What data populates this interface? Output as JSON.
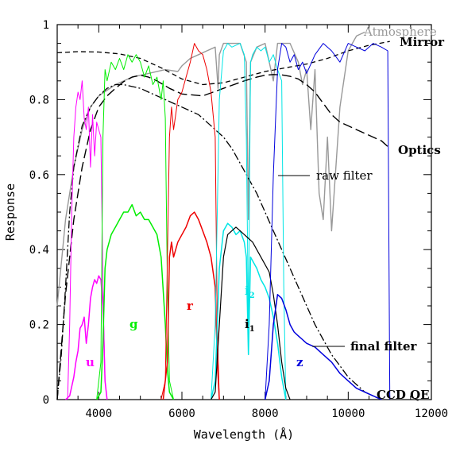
{
  "chart_data": {
    "type": "line",
    "xlabel": "Wavelength (Å)",
    "ylabel": "Response",
    "xlim": [
      3000,
      12000
    ],
    "ylim": [
      0,
      1
    ],
    "x_ticks": [
      4000,
      6000,
      8000,
      10000,
      12000
    ],
    "y_ticks": [
      0,
      0.2,
      0.4,
      0.6,
      0.8,
      1
    ],
    "x_tick_labels": [
      "4000",
      "6000",
      "8000",
      "10000",
      "12000"
    ],
    "y_tick_labels": [
      "0",
      "0.2",
      "0.4",
      "0.6",
      "0.8",
      "1"
    ],
    "colors": {
      "u": "#ff00ff",
      "g": "#00ee00",
      "r": "#ee0000",
      "i": "#00e5e5",
      "z": "#0000dd",
      "atmosphere": "#999999",
      "black": "#000000"
    },
    "annotations": {
      "atmosphere": "Atmosphere",
      "mirror": "Mirror",
      "optics": "Optics",
      "raw_filter": "raw filter",
      "final_filter": "final filter",
      "ccd_qe": "CCD QE",
      "u": "u",
      "g": "g",
      "r": "r",
      "i2": "i",
      "i2_sub": "2",
      "i1": "i",
      "i1_sub": "1",
      "z": "z"
    },
    "series": [
      {
        "key": "atmosphere",
        "x": [
          3000,
          3200,
          3400,
          3600,
          3800,
          4000,
          4400,
          4800,
          5200,
          5600,
          5900,
          6000,
          6200,
          6400,
          6600,
          6800,
          6870,
          6900,
          7000,
          7200,
          7400,
          7550,
          7600,
          7650,
          7800,
          8000,
          8100,
          8200,
          8300,
          8600,
          8800,
          8900,
          9000,
          9100,
          9200,
          9300,
          9400,
          9500,
          9600,
          9800,
          10000,
          10200,
          10400
        ],
        "y": [
          0.25,
          0.48,
          0.62,
          0.72,
          0.78,
          0.81,
          0.84,
          0.86,
          0.87,
          0.88,
          0.875,
          0.89,
          0.91,
          0.92,
          0.93,
          0.94,
          0.83,
          0.92,
          0.95,
          0.95,
          0.95,
          0.9,
          0.48,
          0.9,
          0.94,
          0.95,
          0.9,
          0.85,
          0.95,
          0.95,
          0.9,
          0.84,
          0.88,
          0.72,
          0.88,
          0.55,
          0.48,
          0.7,
          0.45,
          0.78,
          0.93,
          0.97,
          0.98
        ]
      },
      {
        "key": "mirror",
        "x": [
          3000,
          3500,
          4000,
          4500,
          5000,
          5500,
          6000,
          6500,
          7000,
          7500,
          8000,
          8500,
          9000,
          9500,
          10000,
          10500,
          11000
        ],
        "y": [
          0.925,
          0.928,
          0.927,
          0.922,
          0.91,
          0.885,
          0.855,
          0.84,
          0.845,
          0.86,
          0.875,
          0.885,
          0.895,
          0.91,
          0.93,
          0.945,
          0.955
        ]
      },
      {
        "key": "optics",
        "x": [
          3000,
          3200,
          3400,
          3600,
          3800,
          4000,
          4200,
          4400,
          4600,
          4800,
          5000,
          5200,
          5400,
          5700,
          6000,
          6500,
          7000,
          7500,
          7800,
          8000,
          8200,
          8400,
          8600,
          8800,
          9000,
          9200,
          9400,
          9600,
          9800,
          10000,
          10200,
          10400,
          10600,
          10800,
          11000
        ],
        "y": [
          0.0,
          0.28,
          0.48,
          0.62,
          0.72,
          0.78,
          0.81,
          0.83,
          0.848,
          0.86,
          0.865,
          0.86,
          0.85,
          0.83,
          0.815,
          0.81,
          0.83,
          0.85,
          0.86,
          0.865,
          0.867,
          0.866,
          0.862,
          0.855,
          0.84,
          0.82,
          0.79,
          0.76,
          0.74,
          0.73,
          0.72,
          0.71,
          0.7,
          0.69,
          0.67
        ]
      },
      {
        "key": "ccd",
        "x": [
          3000,
          3100,
          3200,
          3300,
          3400,
          3600,
          3800,
          4000,
          4200,
          4400,
          4600,
          4800,
          5000,
          5200,
          5400,
          5600,
          5800,
          6000,
          6200,
          6400,
          6600,
          6800,
          7000,
          7200,
          7400,
          7600,
          7800,
          8000,
          8200,
          8400,
          8600,
          8800,
          9000,
          9200,
          9400,
          9600,
          9800,
          10000,
          10200,
          10400,
          10600,
          10800
        ],
        "y": [
          0.0,
          0.12,
          0.3,
          0.5,
          0.62,
          0.73,
          0.78,
          0.81,
          0.83,
          0.84,
          0.84,
          0.835,
          0.83,
          0.82,
          0.81,
          0.8,
          0.79,
          0.78,
          0.77,
          0.76,
          0.74,
          0.72,
          0.7,
          0.67,
          0.63,
          0.59,
          0.55,
          0.5,
          0.45,
          0.4,
          0.35,
          0.3,
          0.25,
          0.2,
          0.16,
          0.12,
          0.09,
          0.06,
          0.04,
          0.02,
          0.01,
          0.0
        ]
      },
      {
        "key": "u_raw",
        "x": [
          3250,
          3300,
          3350,
          3400,
          3450,
          3500,
          3550,
          3600,
          3650,
          3700,
          3750,
          3800,
          3850,
          3900,
          3950,
          4000,
          4050,
          4100,
          4150,
          4200
        ],
        "y": [
          0.0,
          0.2,
          0.5,
          0.7,
          0.78,
          0.82,
          0.8,
          0.85,
          0.75,
          0.72,
          0.78,
          0.62,
          0.76,
          0.65,
          0.74,
          0.72,
          0.7,
          0.3,
          0.05,
          0.0
        ]
      },
      {
        "key": "u_final",
        "x": [
          3200,
          3300,
          3400,
          3450,
          3500,
          3550,
          3600,
          3650,
          3700,
          3750,
          3800,
          3850,
          3900,
          3950,
          4000,
          4050,
          4100,
          4150,
          4200
        ],
        "y": [
          0.0,
          0.01,
          0.06,
          0.1,
          0.13,
          0.19,
          0.2,
          0.22,
          0.15,
          0.2,
          0.27,
          0.3,
          0.32,
          0.31,
          0.33,
          0.32,
          0.25,
          0.05,
          0.0
        ]
      },
      {
        "key": "g_raw",
        "x": [
          3950,
          4050,
          4100,
          4150,
          4200,
          4300,
          4400,
          4500,
          4600,
          4700,
          4800,
          4900,
          5000,
          5100,
          5200,
          5300,
          5400,
          5500,
          5550,
          5600,
          5650,
          5700,
          5800
        ],
        "y": [
          0.0,
          0.1,
          0.7,
          0.88,
          0.85,
          0.9,
          0.88,
          0.91,
          0.88,
          0.92,
          0.9,
          0.92,
          0.9,
          0.86,
          0.89,
          0.84,
          0.86,
          0.8,
          0.85,
          0.75,
          0.3,
          0.05,
          0.0
        ]
      },
      {
        "key": "g_final",
        "x": [
          3950,
          4050,
          4100,
          4150,
          4200,
          4300,
          4400,
          4500,
          4600,
          4700,
          4800,
          4900,
          5000,
          5100,
          5200,
          5300,
          5400,
          5500,
          5600,
          5650,
          5700,
          5800
        ],
        "y": [
          0.0,
          0.02,
          0.15,
          0.35,
          0.4,
          0.44,
          0.46,
          0.48,
          0.5,
          0.5,
          0.52,
          0.49,
          0.5,
          0.48,
          0.48,
          0.46,
          0.44,
          0.38,
          0.2,
          0.08,
          0.02,
          0.0
        ]
      },
      {
        "key": "r_raw",
        "x": [
          5500,
          5600,
          5700,
          5750,
          5800,
          5900,
          6000,
          6100,
          6200,
          6300,
          6400,
          6500,
          6600,
          6700,
          6800,
          6850,
          6900
        ],
        "y": [
          0.0,
          0.05,
          0.7,
          0.78,
          0.72,
          0.8,
          0.82,
          0.86,
          0.9,
          0.95,
          0.93,
          0.92,
          0.88,
          0.82,
          0.7,
          0.2,
          0.0
        ]
      },
      {
        "key": "r_final",
        "x": [
          5550,
          5650,
          5700,
          5750,
          5800,
          5900,
          6000,
          6100,
          6200,
          6300,
          6400,
          6500,
          6600,
          6700,
          6800,
          6850,
          6900
        ],
        "y": [
          0.0,
          0.1,
          0.38,
          0.42,
          0.38,
          0.42,
          0.44,
          0.46,
          0.49,
          0.5,
          0.48,
          0.45,
          0.42,
          0.38,
          0.3,
          0.1,
          0.0
        ]
      },
      {
        "key": "i_raw",
        "x": [
          6700,
          6800,
          6900,
          7000,
          7100,
          7200,
          7400,
          7500,
          7550,
          7600,
          7650,
          7700,
          7800,
          7900,
          8000,
          8100,
          8200,
          8300,
          8400,
          8450,
          8500
        ],
        "y": [
          0.0,
          0.2,
          0.8,
          0.93,
          0.95,
          0.94,
          0.95,
          0.92,
          0.7,
          0.2,
          0.9,
          0.92,
          0.94,
          0.93,
          0.94,
          0.9,
          0.92,
          0.88,
          0.85,
          0.3,
          0.0
        ]
      },
      {
        "key": "i_final",
        "x": [
          6700,
          6800,
          6900,
          7000,
          7100,
          7200,
          7300,
          7400,
          7500,
          7550,
          7600,
          7650,
          7700,
          7800,
          7900,
          8000,
          8100,
          8200,
          8300,
          8400,
          8500
        ],
        "y": [
          0.0,
          0.05,
          0.35,
          0.45,
          0.47,
          0.46,
          0.44,
          0.45,
          0.42,
          0.38,
          0.12,
          0.38,
          0.37,
          0.35,
          0.32,
          0.3,
          0.27,
          0.22,
          0.15,
          0.06,
          0.0
        ]
      },
      {
        "key": "i1_final",
        "x": [
          6700,
          6800,
          6900,
          7000,
          7100,
          7200,
          7300,
          7400,
          7500,
          7600,
          7700,
          7800,
          7900,
          8000,
          8100,
          8200,
          8300,
          8400,
          8500,
          8600
        ],
        "y": [
          0.0,
          0.02,
          0.2,
          0.38,
          0.44,
          0.45,
          0.46,
          0.45,
          0.44,
          0.43,
          0.42,
          0.4,
          0.38,
          0.36,
          0.34,
          0.28,
          0.2,
          0.1,
          0.03,
          0.0
        ]
      },
      {
        "key": "z_raw",
        "x": [
          8000,
          8100,
          8200,
          8300,
          8400,
          8500,
          8600,
          8700,
          8800,
          8900,
          9000,
          9200,
          9400,
          9600,
          9800,
          10000,
          10200,
          10400,
          10600,
          10800,
          10950,
          11000
        ],
        "y": [
          0.0,
          0.2,
          0.6,
          0.88,
          0.95,
          0.94,
          0.9,
          0.92,
          0.88,
          0.9,
          0.87,
          0.92,
          0.95,
          0.93,
          0.9,
          0.95,
          0.94,
          0.93,
          0.95,
          0.94,
          0.93,
          0.0
        ]
      },
      {
        "key": "z_final",
        "x": [
          8000,
          8100,
          8200,
          8300,
          8400,
          8500,
          8600,
          8700,
          8800,
          8900,
          9000,
          9200,
          9400,
          9600,
          9800,
          10000,
          10200,
          10400,
          10600,
          10800
        ],
        "y": [
          0.0,
          0.05,
          0.2,
          0.28,
          0.27,
          0.24,
          0.2,
          0.18,
          0.17,
          0.16,
          0.15,
          0.14,
          0.12,
          0.1,
          0.07,
          0.05,
          0.03,
          0.02,
          0.01,
          0.0
        ]
      }
    ]
  }
}
